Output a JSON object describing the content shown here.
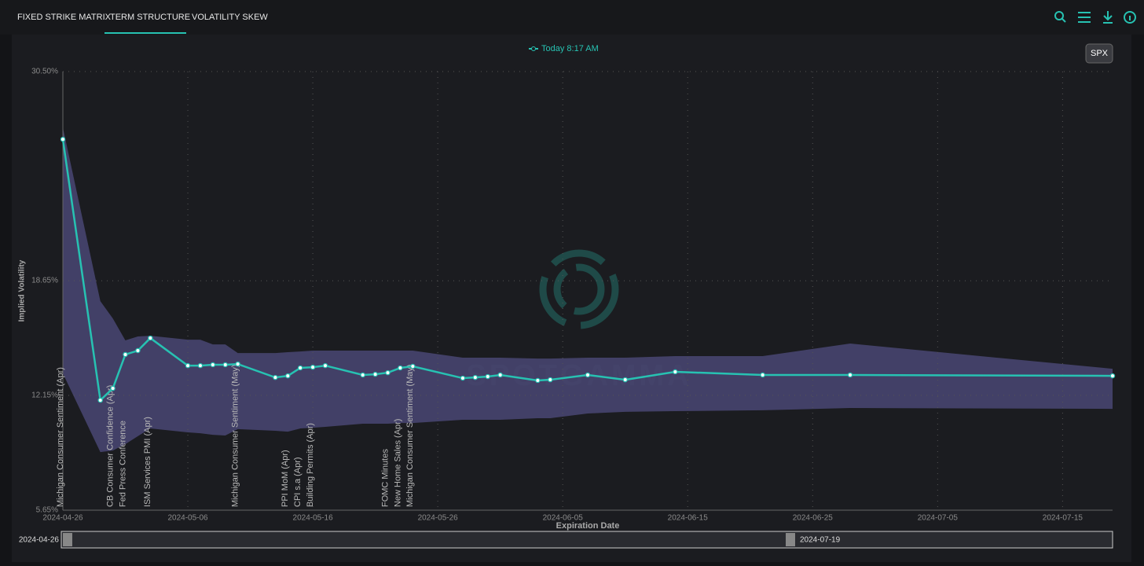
{
  "tabs": [
    "FIXED STRIKE MATRIX",
    "TERM STRUCTURE",
    "VOLATILITY SKEW"
  ],
  "active_tab": 1,
  "button": "SPX",
  "chart_data": {
    "type": "line",
    "watermark": "SPOTGAMMA",
    "y_label": "Implied Volatility",
    "x_label": "Expiration Date",
    "x": [
      "2024-04-26",
      "2024-04-29",
      "2024-04-30",
      "2024-05-01",
      "2024-05-02",
      "2024-05-03",
      "2024-05-06",
      "2024-05-07",
      "2024-05-08",
      "2024-05-09",
      "2024-05-10",
      "2024-05-13",
      "2024-05-14",
      "2024-05-15",
      "2024-05-16",
      "2024-05-17",
      "2024-05-20",
      "2024-05-21",
      "2024-05-22",
      "2024-05-23",
      "2024-05-24",
      "2024-05-28",
      "2024-05-29",
      "2024-05-30",
      "2024-05-31",
      "2024-06-03",
      "2024-06-04",
      "2024-06-07",
      "2024-06-10",
      "2024-06-14",
      "2024-06-21",
      "2024-06-28",
      "2024-07-19"
    ],
    "series": [
      {
        "name": "Today 8:17 AM",
        "color": "#27c2b2",
        "values": [
          26.66,
          11.88,
          12.55,
          14.47,
          14.69,
          15.4,
          13.84,
          13.84,
          13.89,
          13.89,
          13.93,
          13.17,
          13.26,
          13.71,
          13.75,
          13.84,
          13.31,
          13.35,
          13.44,
          13.71,
          13.8,
          13.13,
          13.17,
          13.22,
          13.31,
          13.0,
          13.04,
          13.31,
          13.04,
          13.49,
          13.31,
          13.31,
          13.26
        ]
      }
    ],
    "band": {
      "color": "#47456f",
      "upper": [
        27.33,
        17.49,
        16.51,
        15.27,
        15.49,
        15.53,
        15.31,
        15.31,
        15.04,
        15.04,
        14.55,
        14.55,
        14.6,
        14.64,
        14.69,
        14.69,
        14.69,
        14.69,
        14.69,
        14.69,
        14.69,
        14.29,
        14.29,
        14.29,
        14.29,
        14.24,
        14.24,
        14.29,
        14.29,
        14.38,
        14.38,
        15.09,
        13.66
      ],
      "lower": [
        13.4,
        8.94,
        9.03,
        9.39,
        9.84,
        10.28,
        10.06,
        10.01,
        9.92,
        9.88,
        10.24,
        10.15,
        10.1,
        10.28,
        10.32,
        10.37,
        10.55,
        10.55,
        10.55,
        10.59,
        10.59,
        10.77,
        10.77,
        10.77,
        10.77,
        10.86,
        10.86,
        11.13,
        11.22,
        11.26,
        11.31,
        11.44,
        11.39
      ]
    },
    "annotations": [
      {
        "text": "Michigan Consumer Sentiment (Apr)",
        "x": "2024-04-26"
      },
      {
        "text": "CB Consumer Confidence (Apr)",
        "x": "2024-04-30"
      },
      {
        "text": "Fed Press Conference",
        "x": "2024-05-01"
      },
      {
        "text": "ISM Services PMI (Apr)",
        "x": "2024-05-03"
      },
      {
        "text": "Michigan Consumer Sentiment (May)",
        "x": "2024-05-10"
      },
      {
        "text": "PPI MoM (Apr)",
        "x": "2024-05-14"
      },
      {
        "text": "CPI s.a (Apr)",
        "x": "2024-05-15"
      },
      {
        "text": "Building Permits (Apr)",
        "x": "2024-05-16"
      },
      {
        "text": "FOMC Minutes",
        "x": "2024-05-22"
      },
      {
        "text": "New Home Sales (Apr)",
        "x": "2024-05-23"
      },
      {
        "text": "Michigan Consumer Sentiment (May)",
        "x": "2024-05-24"
      }
    ],
    "xlim": [
      "2024-04-26",
      "2024-07-19"
    ],
    "xticks": [
      "2024-04-26",
      "2024-05-06",
      "2024-05-16",
      "2024-05-26",
      "2024-06-05",
      "2024-06-15",
      "2024-06-25",
      "2024-07-05",
      "2024-07-15"
    ],
    "ylim": [
      5.65,
      30.5
    ],
    "yticks": [
      {
        "value": 5.65,
        "label": "5.65%"
      },
      {
        "value": 12.15,
        "label": "12.15%"
      },
      {
        "value": 18.65,
        "label": "18.65%"
      },
      {
        "value": 30.5,
        "label": "30.50%"
      }
    ],
    "grid": true
  }
}
